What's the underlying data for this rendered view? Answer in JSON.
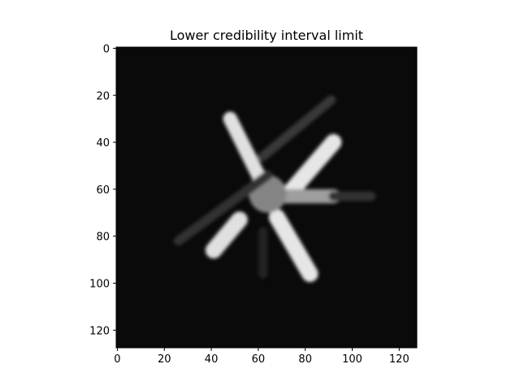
{
  "chart_data": {
    "type": "heatmap",
    "title": "Lower credibility interval limit",
    "xlabel": "",
    "ylabel": "",
    "xlim": [
      -0.5,
      127.5
    ],
    "ylim": [
      127.5,
      -0.5
    ],
    "x_ticks": [
      0,
      20,
      40,
      60,
      80,
      100,
      120
    ],
    "y_ticks": [
      0,
      20,
      40,
      60,
      80,
      100,
      120
    ],
    "grid": false,
    "colormap": "gray",
    "background_value": 0.04,
    "image_size": [
      128,
      128
    ],
    "features": [
      {
        "kind": "blade",
        "from": [
          48,
          30
        ],
        "to": [
          62,
          58
        ],
        "width": 6,
        "value": 0.88
      },
      {
        "kind": "blade",
        "from": [
          73,
          62
        ],
        "to": [
          92,
          40
        ],
        "width": 7,
        "value": 0.9
      },
      {
        "kind": "blade",
        "from": [
          52,
          73
        ],
        "to": [
          41,
          86
        ],
        "width": 7,
        "value": 0.88
      },
      {
        "kind": "blade",
        "from": [
          68,
          72
        ],
        "to": [
          82,
          96
        ],
        "width": 7,
        "value": 0.9
      },
      {
        "kind": "blade",
        "from": [
          70,
          63
        ],
        "to": [
          92,
          63
        ],
        "width": 6,
        "value": 0.62
      },
      {
        "kind": "hub",
        "center": [
          64,
          62
        ],
        "radius": 8,
        "value": 0.52
      },
      {
        "kind": "streak",
        "from": [
          26,
          82
        ],
        "to": [
          64,
          54
        ],
        "width": 4,
        "value": 0.2
      },
      {
        "kind": "streak",
        "from": [
          62,
          46
        ],
        "to": [
          91,
          22
        ],
        "width": 4,
        "value": 0.22
      },
      {
        "kind": "streak",
        "from": [
          92,
          63
        ],
        "to": [
          108,
          63
        ],
        "width": 4,
        "value": 0.2
      },
      {
        "kind": "streak",
        "from": [
          62,
          78
        ],
        "to": [
          62,
          96
        ],
        "width": 4,
        "value": 0.13
      }
    ]
  }
}
